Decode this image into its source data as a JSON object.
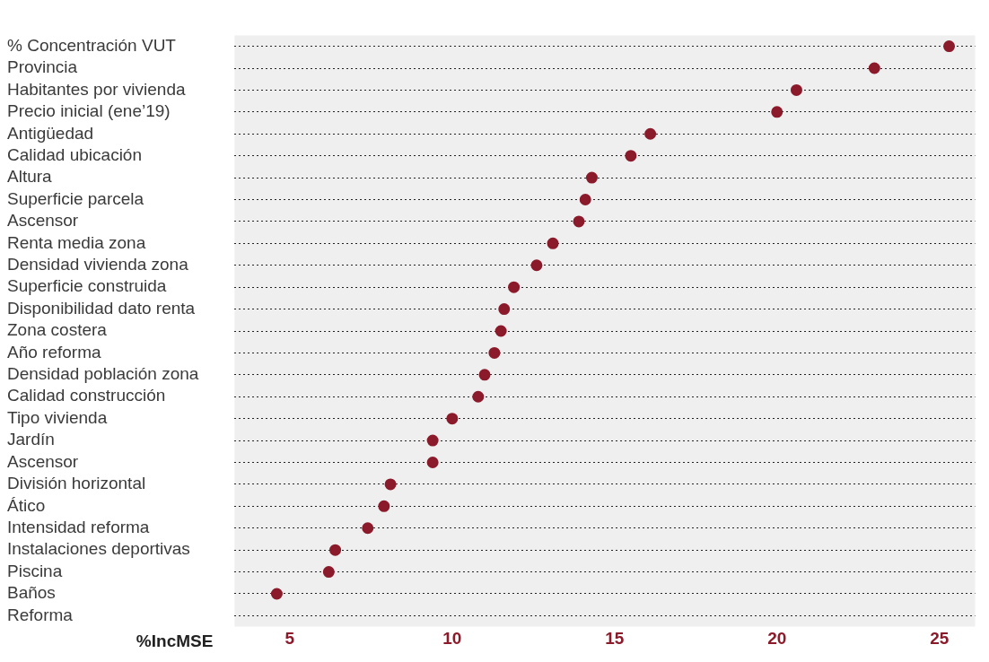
{
  "chart_data": {
    "type": "scatter",
    "orientation": "horizontal",
    "xlabel": "%IncMSE",
    "categories": [
      "% Concentración VUT",
      "Provincia",
      "Habitantes por vivienda",
      "Precio inicial (ene’19)",
      "Antigüedad",
      "Calidad ubicación",
      "Altura",
      "Superficie parcela",
      "Ascensor",
      "Renta media zona",
      "Densidad vivienda zona",
      "Superficie construida",
      "Disponibilidad dato renta",
      "Zona costera",
      "Año reforma",
      "Densidad población zona",
      "Calidad construcción",
      "Tipo vivienda",
      "Jardín",
      "Ascensor",
      "División horizontal",
      "Ático",
      "Intensidad reforma",
      "Instalaciones deportivas",
      "Piscina",
      "Baños",
      "Reforma"
    ],
    "values": [
      25.3,
      23.0,
      20.6,
      20.0,
      16.1,
      15.5,
      14.3,
      14.1,
      13.9,
      13.1,
      12.6,
      11.9,
      11.6,
      11.5,
      11.3,
      11.0,
      10.8,
      10.0,
      9.4,
      9.4,
      8.1,
      7.9,
      7.4,
      6.4,
      6.2,
      4.6,
      null
    ],
    "color": "#8b1a2b",
    "marker": "circle",
    "grid": "y",
    "line_style": "dotted",
    "xlim": [
      3.3,
      26.1
    ],
    "xticks": [
      5,
      10,
      15,
      20,
      25
    ]
  }
}
